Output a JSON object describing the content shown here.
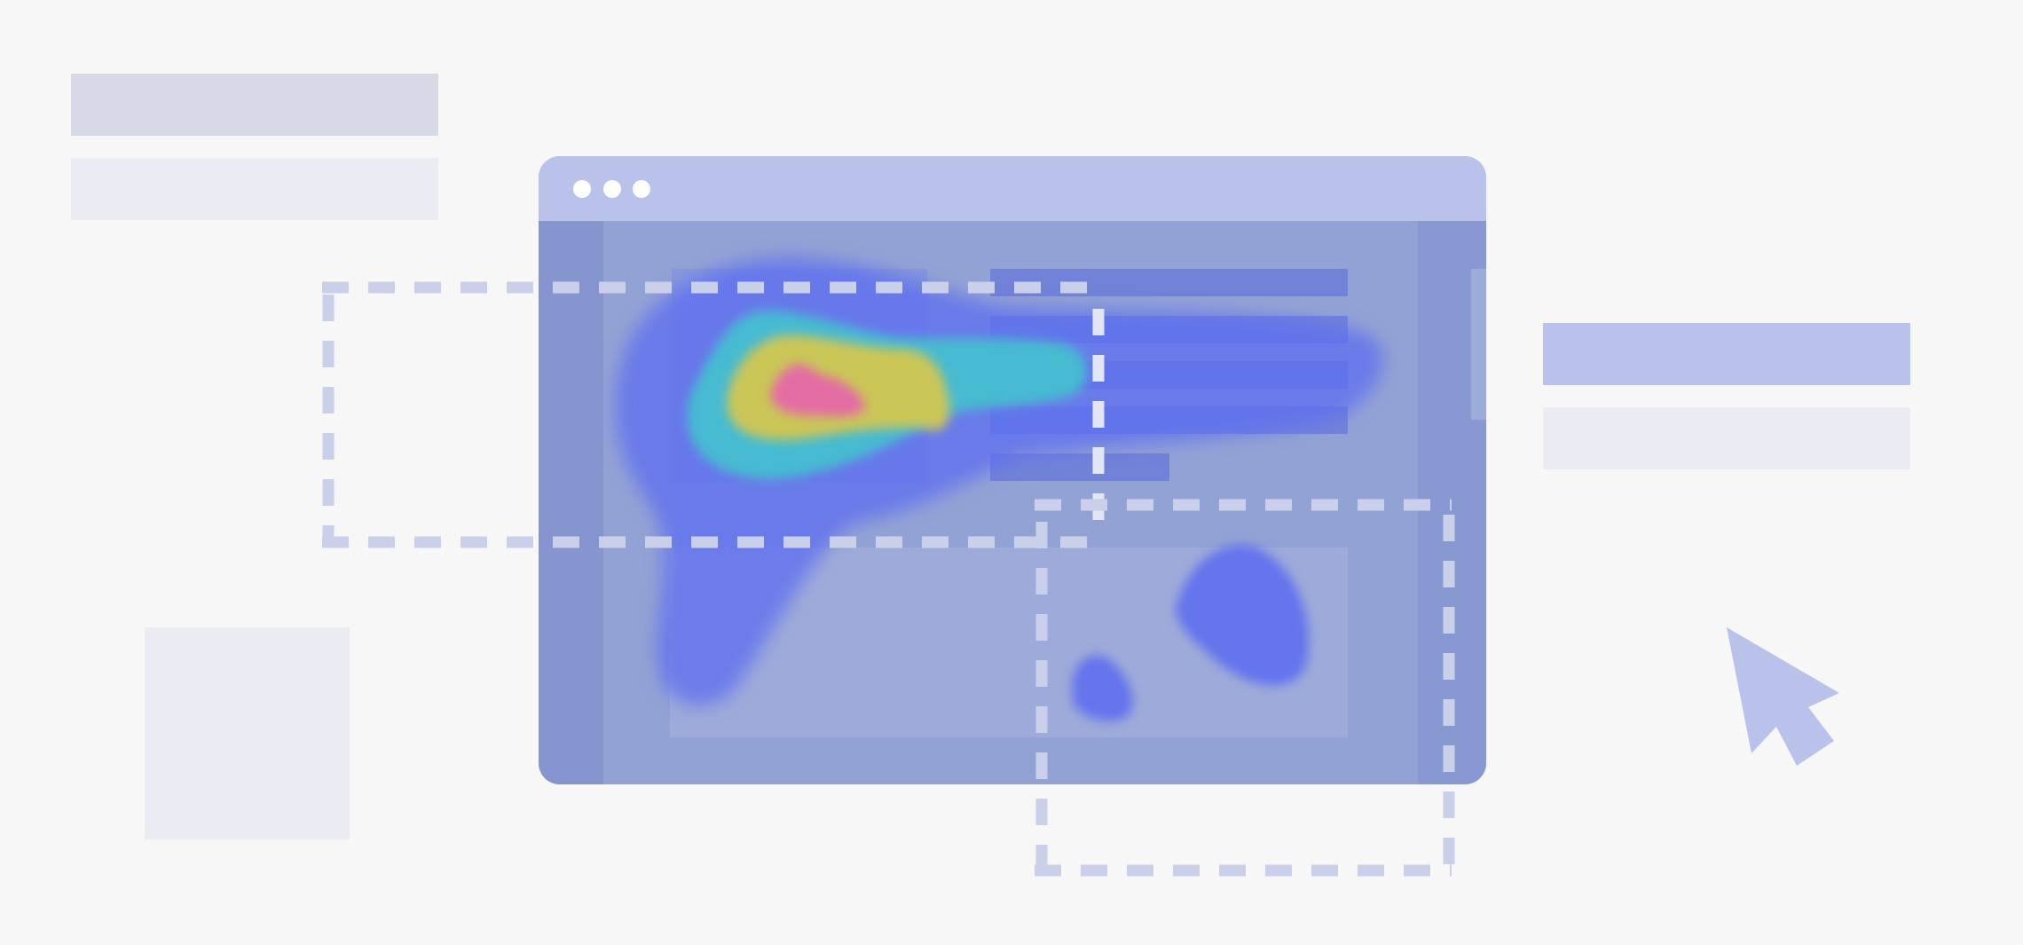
{
  "colors": {
    "background": "#f7f7f7",
    "placeholder_dark": "#d8d9e6",
    "placeholder_light": "#ebecf3",
    "accent_light": "#b9c2ea",
    "window_titlebar": "#b9c2ea",
    "window_body": "#93a2d4",
    "window_sidebar": "#8595cd",
    "content_bar": "#7182d8",
    "dashed_outline": "#cbd0ea",
    "heat_low": "#5d6ff0",
    "heat_mid": "#45bfd0",
    "heat_high": "#d2c750",
    "heat_peak": "#e46aa6",
    "cursor": "#b9c2ea"
  },
  "icons": {
    "window_controls": [
      "window-dot-icon",
      "window-dot-icon",
      "window-dot-icon"
    ],
    "pointer": "cursor-arrow-icon"
  }
}
